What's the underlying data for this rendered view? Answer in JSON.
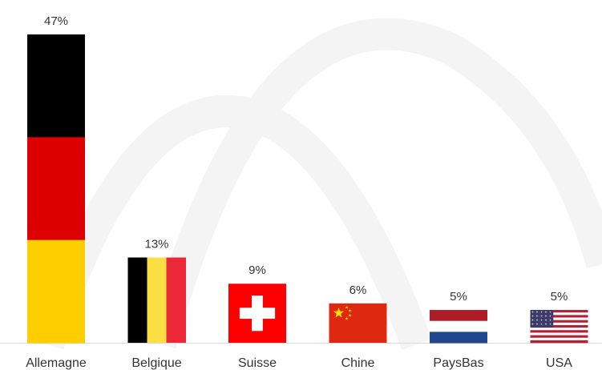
{
  "chart_data": {
    "type": "bar",
    "categories": [
      "Allemagne",
      "Belgique",
      "Suisse",
      "Chine",
      "PaysBas",
      "USA"
    ],
    "values": [
      47,
      13,
      9,
      6,
      5,
      5
    ],
    "value_labels": [
      "47%",
      "13%",
      "9%",
      "6%",
      "5%",
      "5%"
    ]
  }
}
